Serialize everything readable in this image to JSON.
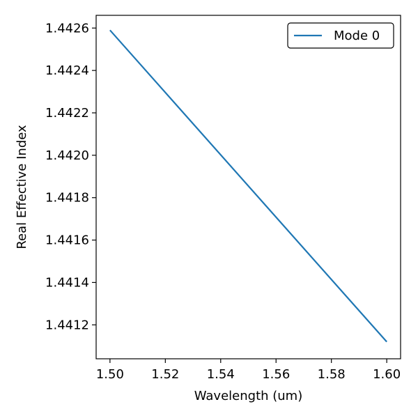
{
  "chart_data": {
    "type": "line",
    "xlabel": "Wavelength (um)",
    "ylabel": "Real Effective Index",
    "xlim": [
      1.495,
      1.605
    ],
    "ylim": [
      1.44104,
      1.44266
    ],
    "x_ticks": [
      "1.50",
      "1.52",
      "1.54",
      "1.56",
      "1.58",
      "1.60"
    ],
    "y_ticks": [
      "1.4412",
      "1.4414",
      "1.4416",
      "1.4418",
      "1.4420",
      "1.4422",
      "1.4424",
      "1.4426"
    ],
    "grid": false,
    "legend": "top-right",
    "series": [
      {
        "name": "Mode 0",
        "color": "#1f77b4",
        "x": [
          1.5,
          1.6
        ],
        "y": [
          1.44259,
          1.44112
        ]
      }
    ]
  }
}
